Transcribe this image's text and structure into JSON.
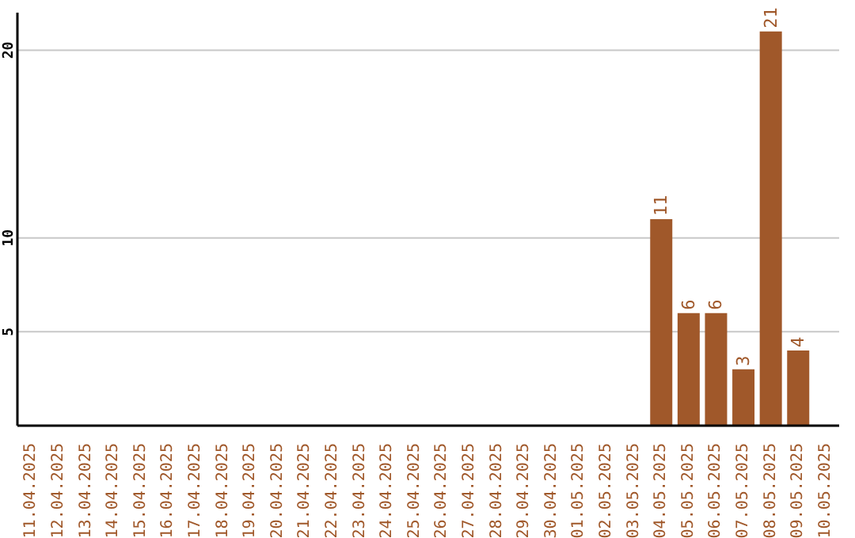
{
  "chart_data": {
    "type": "bar",
    "categories": [
      "11.04.2025",
      "12.04.2025",
      "13.04.2025",
      "14.04.2025",
      "15.04.2025",
      "16.04.2025",
      "17.04.2025",
      "18.04.2025",
      "19.04.2025",
      "20.04.2025",
      "21.04.2025",
      "22.04.2025",
      "23.04.2025",
      "24.04.2025",
      "25.04.2025",
      "26.04.2025",
      "27.04.2025",
      "28.04.2025",
      "29.04.2025",
      "30.04.2025",
      "01.05.2025",
      "02.05.2025",
      "03.05.2025",
      "04.05.2025",
      "05.05.2025",
      "06.05.2025",
      "07.05.2025",
      "08.05.2025",
      "09.05.2025",
      "10.05.2025"
    ],
    "values": [
      0,
      0,
      0,
      0,
      0,
      0,
      0,
      0,
      0,
      0,
      0,
      0,
      0,
      0,
      0,
      0,
      0,
      0,
      0,
      0,
      0,
      0,
      0,
      11,
      6,
      6,
      3,
      21,
      4,
      0
    ],
    "value_labels": [
      null,
      null,
      null,
      null,
      null,
      null,
      null,
      null,
      null,
      null,
      null,
      null,
      null,
      null,
      null,
      null,
      null,
      null,
      null,
      null,
      null,
      null,
      null,
      "11",
      "6",
      "6",
      "3",
      "21",
      "4",
      null
    ],
    "color": "#a0582a",
    "ylim": [
      0,
      22
    ],
    "yticks": [
      5,
      10,
      20
    ],
    "grid": "y"
  }
}
